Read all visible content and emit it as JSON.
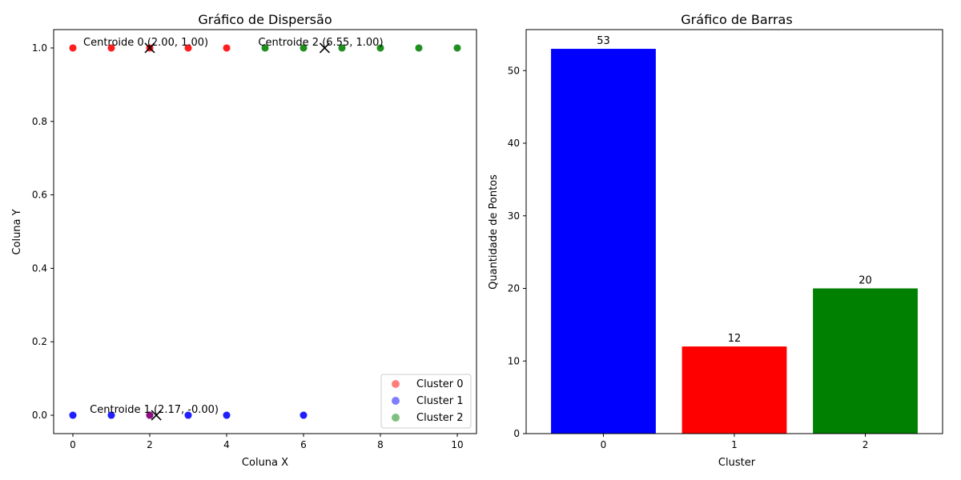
{
  "chart_data": [
    {
      "type": "scatter",
      "title": "Gráfico de Dispersão",
      "xlabel": "Coluna X",
      "ylabel": "Coluna Y",
      "xlim": [
        -0.5,
        10.5
      ],
      "ylim": [
        -0.05,
        1.05
      ],
      "xticks": [
        "0",
        "2",
        "4",
        "6",
        "8",
        "10"
      ],
      "yticks": [
        "0.0",
        "0.2",
        "0.4",
        "0.6",
        "0.8",
        "1.0"
      ],
      "xtick_values": [
        0,
        2,
        4,
        6,
        8,
        10
      ],
      "ytick_values": [
        0.0,
        0.2,
        0.4,
        0.6,
        0.8,
        1.0
      ],
      "legend_position": "bottom-right",
      "series": [
        {
          "name": "Cluster 0",
          "color": "#ff0000",
          "x": [
            0,
            1,
            2,
            3,
            4
          ],
          "y": [
            1,
            1,
            1,
            1,
            1
          ]
        },
        {
          "name": "Cluster 1",
          "color": "#0000ff",
          "x": [
            0,
            1,
            2,
            3,
            4,
            6
          ],
          "y": [
            0,
            0,
            0,
            0,
            0,
            0
          ]
        },
        {
          "name": "Cluster 2",
          "color": "#008000",
          "x": [
            5,
            6,
            7,
            8,
            9,
            10
          ],
          "y": [
            1,
            1,
            1,
            1,
            1,
            1
          ]
        }
      ],
      "overlap_points": [
        {
          "x": 2,
          "y": 0,
          "color": "#ff0000"
        }
      ],
      "centroids": [
        {
          "label": "Centroide 0 (2.00, 1.00)",
          "x": 2.0,
          "y": 1.0
        },
        {
          "label": "Centroide 1 (2.17, -0.00)",
          "x": 2.17,
          "y": 0.0
        },
        {
          "label": "Centroide 2 (6.55, 1.00)",
          "x": 6.55,
          "y": 1.0
        }
      ]
    },
    {
      "type": "bar",
      "title": "Gráfico de Barras",
      "xlabel": "Cluster",
      "ylabel": "Quantidade de Pontos",
      "categories": [
        "0",
        "1",
        "2"
      ],
      "values": [
        53,
        12,
        20
      ],
      "value_labels": [
        "53",
        "12",
        "20"
      ],
      "colors": [
        "#0000ff",
        "#ff0000",
        "#008000"
      ],
      "ylim": [
        0,
        55.65
      ],
      "yticks": [
        "0",
        "10",
        "20",
        "30",
        "40",
        "50"
      ],
      "ytick_values": [
        0,
        10,
        20,
        30,
        40,
        50
      ]
    }
  ]
}
